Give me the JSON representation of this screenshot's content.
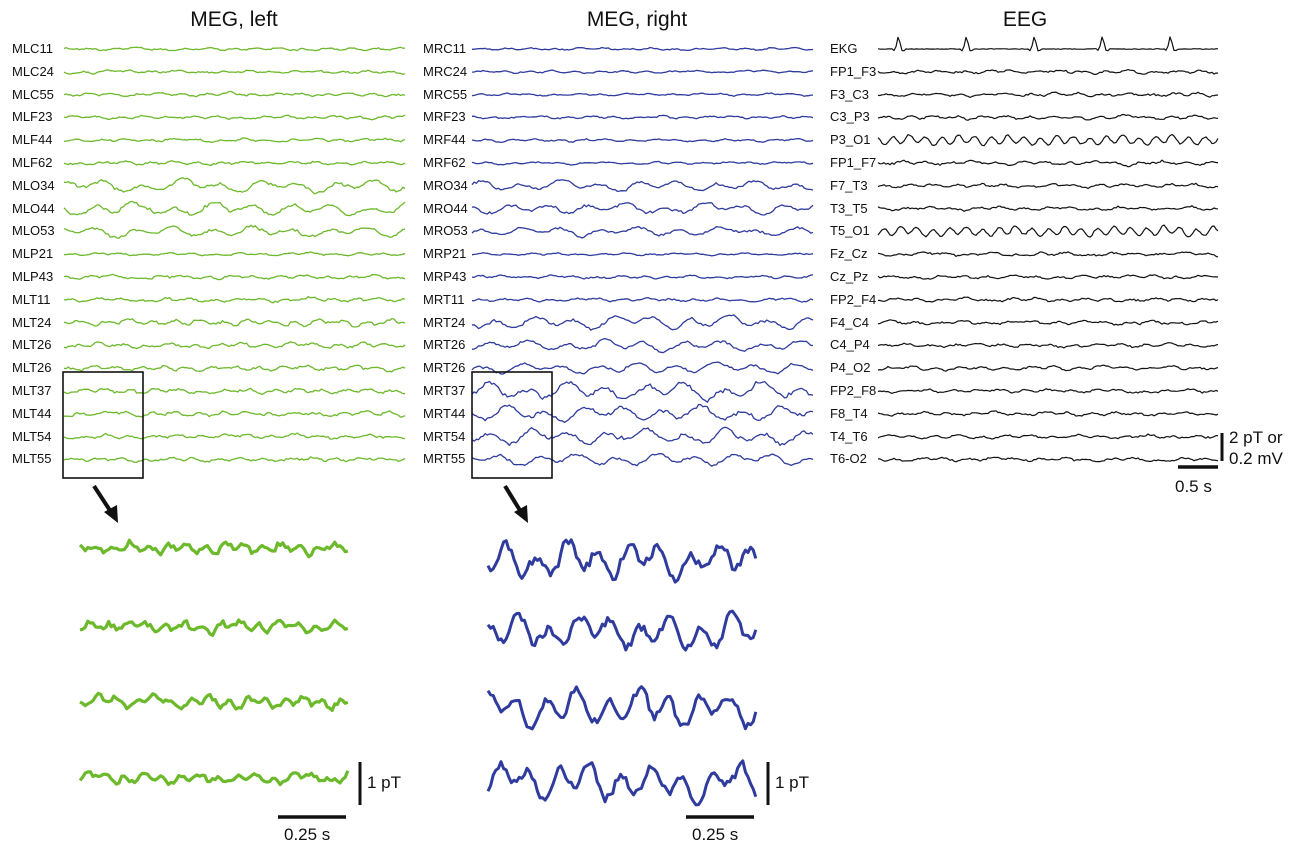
{
  "titles": {
    "meg_left": "MEG, left",
    "meg_right": "MEG, right",
    "eeg": "EEG"
  },
  "colors": {
    "meg_left": "#6cb92b",
    "meg_right": "#2f3c9e",
    "eeg": "#111111"
  },
  "channels": {
    "meg_left": [
      "MLC11",
      "MLC24",
      "MLC55",
      "MLF23",
      "MLF44",
      "MLF62",
      "MLO34",
      "MLO44",
      "MLO53",
      "MLP21",
      "MLP43",
      "MLT11",
      "MLT24",
      "MLT26",
      "MLT26",
      "MLT37",
      "MLT44",
      "MLT54",
      "MLT55"
    ],
    "meg_right": [
      "MRC11",
      "MRC24",
      "MRC55",
      "MRF23",
      "MRF44",
      "MRF62",
      "MRO34",
      "MRO44",
      "MRO53",
      "MRP21",
      "MRP43",
      "MRT11",
      "MRT24",
      "MRT26",
      "MRT26",
      "MRT37",
      "MRT44",
      "MRT54",
      "MRT55"
    ],
    "eeg": [
      "EKG",
      "FP1_F3",
      "F3_C3",
      "C3_P3",
      "P3_O1",
      "FP1_F7",
      "F7_T3",
      "T3_T5",
      "T5_O1",
      "Fz_Cz",
      "Cz_Pz",
      "FP2_F4",
      "F4_C4",
      "C4_P4",
      "P4_O2",
      "FP2_F8",
      "F8_T4",
      "T4_T6",
      "T6-O2"
    ]
  },
  "scales": {
    "main_amplitude_line1": "2 pT or",
    "main_amplitude_line2": "0.2 mV",
    "main_time": "0.5 s",
    "zoom_left_amplitude": "1 pT",
    "zoom_left_time": "0.25 s",
    "zoom_right_amplitude": "1 pT",
    "zoom_right_time": "0.25 s"
  }
}
